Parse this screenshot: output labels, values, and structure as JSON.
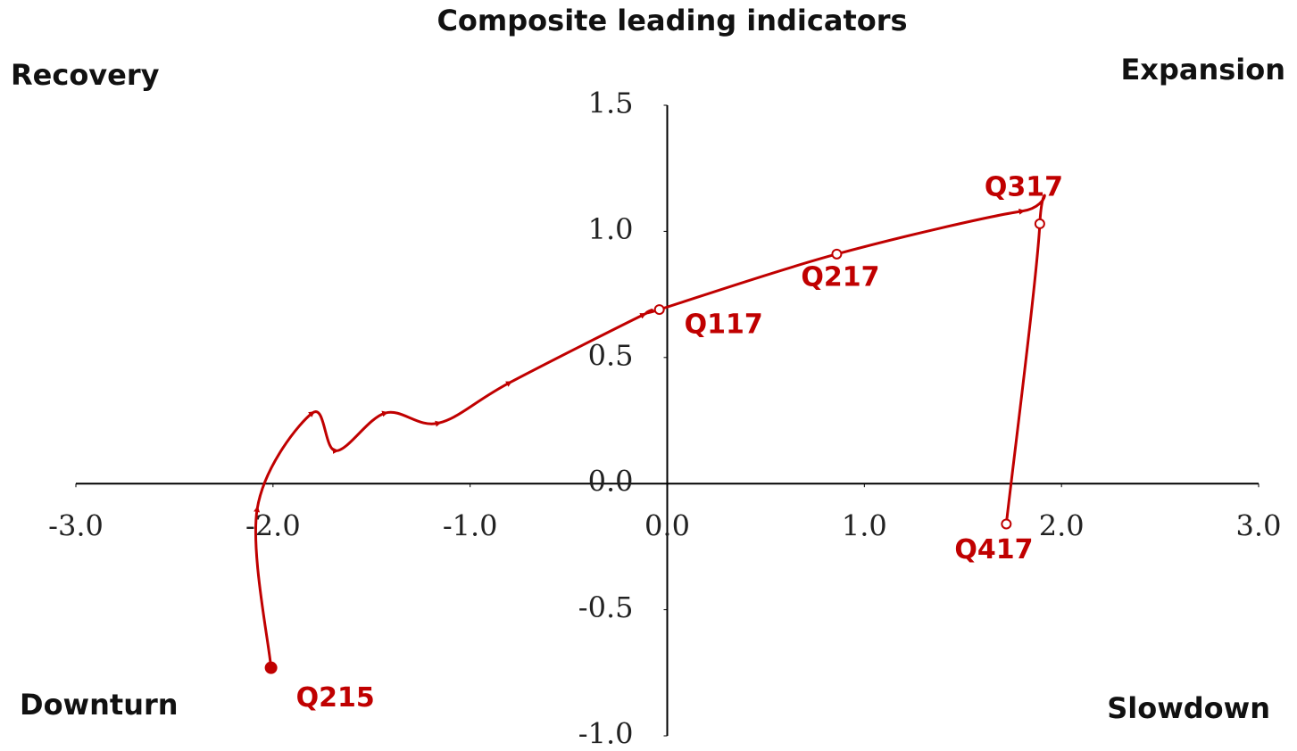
{
  "chart_data": {
    "type": "line",
    "title": "Composite leading indicators",
    "annotations": [
      "Recovery",
      "Expansion",
      "Downturn",
      "Slowdown"
    ],
    "x": [
      -2.01,
      -2.08,
      -1.8,
      -1.68,
      -1.43,
      -1.16,
      -0.8,
      -0.12,
      -0.04,
      0.86,
      1.8,
      1.89,
      1.72
    ],
    "values": [
      -0.73,
      -0.1,
      0.28,
      0.13,
      0.28,
      0.24,
      0.4,
      0.67,
      0.69,
      0.91,
      1.08,
      1.03,
      -0.16
    ],
    "labels": [
      "Q215",
      null,
      null,
      null,
      null,
      null,
      null,
      null,
      "Q117",
      "Q217",
      null,
      "Q317",
      "Q417"
    ],
    "color": "#c00000",
    "xlim": [
      -3,
      3
    ],
    "ylim": [
      -1,
      1.5
    ],
    "xticks": [
      {
        "value": -3,
        "label": "-3.0"
      },
      {
        "value": -2,
        "label": "-2.0"
      },
      {
        "value": -1,
        "label": "-1.0"
      },
      {
        "value": 0,
        "label": "0.0"
      },
      {
        "value": 1,
        "label": "1.0"
      },
      {
        "value": 2,
        "label": "2.0"
      },
      {
        "value": 3,
        "label": "3.0"
      }
    ],
    "yticks": [
      {
        "value": -1,
        "label": "-1.0"
      },
      -0.5,
      {
        "value": 0,
        "label": "0.0"
      },
      0.5,
      {
        "value": 1,
        "label": "1.0"
      },
      1.5
    ]
  }
}
